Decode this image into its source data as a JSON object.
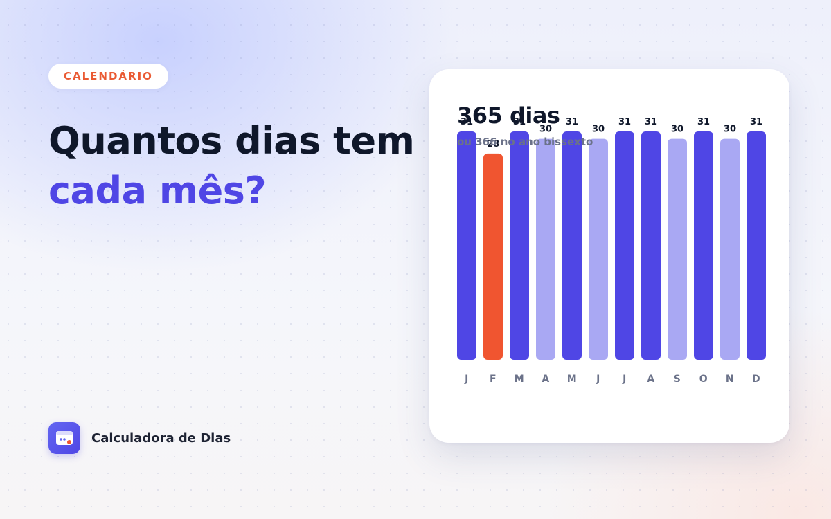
{
  "tag": "CALENDÁRIO",
  "headline": {
    "line1": "Quantos dias tem",
    "line2": "cada mês?"
  },
  "brand": {
    "name": "Calculadora de Dias",
    "icon": "calendar-app-icon"
  },
  "card": {
    "total": "365 dias",
    "note": "ou 366 no ano bissexto"
  },
  "colors": {
    "long_month": "#4f46e5",
    "short_month": "#a9a8f3",
    "february": "#f05530",
    "headline_accent": "#4f46e5",
    "tag_text": "#ea5a33"
  },
  "chart_data": {
    "type": "bar",
    "categories": [
      "J",
      "F",
      "M",
      "A",
      "M",
      "J",
      "J",
      "A",
      "S",
      "O",
      "N",
      "D"
    ],
    "values": [
      31,
      28,
      31,
      30,
      31,
      30,
      31,
      31,
      30,
      31,
      30,
      31
    ],
    "title": "",
    "xlabel": "",
    "ylabel": "",
    "ylim": [
      0,
      31
    ],
    "grid": false,
    "legend": "none",
    "data_labels": true
  }
}
